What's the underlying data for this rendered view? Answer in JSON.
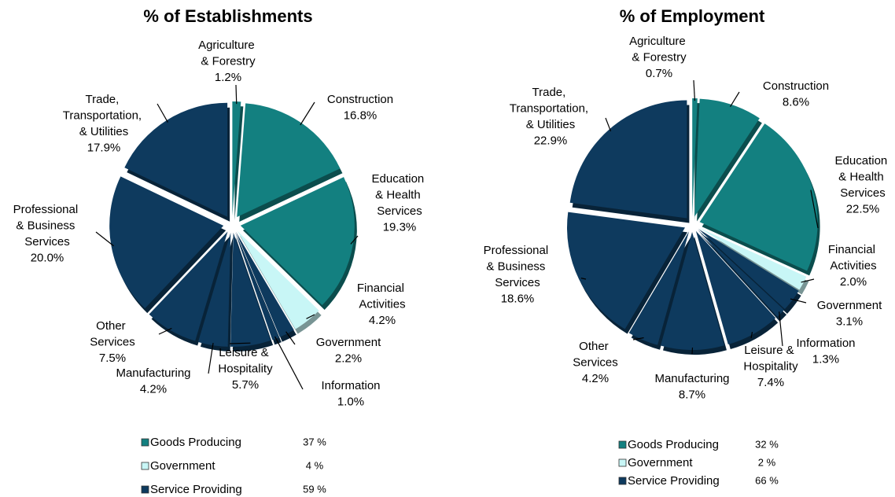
{
  "chart_data": [
    {
      "type": "pie",
      "title": "% of Establishments",
      "categories": [
        "Agriculture & Forestry",
        "Construction",
        "Education & Health Services",
        "Financial Activities",
        "Government",
        "Information",
        "Leisure & Hospitality",
        "Manufacturing",
        "Other Services",
        "Professional & Business Services",
        "Trade, Transportation, & Utilities"
      ],
      "values": [
        1.2,
        16.8,
        19.3,
        4.2,
        2.2,
        1.0,
        5.7,
        4.2,
        7.5,
        20.0,
        17.9
      ],
      "value_labels": [
        "1.2%",
        "16.8%",
        "19.3%",
        "4.2%",
        "2.2%",
        "1.0%",
        "5.7%",
        "4.2%",
        "7.5%",
        "20.0%",
        "17.9%"
      ],
      "colors": [
        "#138080",
        "#138080",
        "#138080",
        "#c8f6f6",
        "#0e3a5e",
        "#0e3a5e",
        "#0e3a5e",
        "#0e3a5e",
        "#0e3a5e",
        "#0e3a5e",
        "#0e3a5e"
      ],
      "legend": {
        "names": [
          "Goods Producing",
          "Government",
          "Service Providing"
        ],
        "values": [
          37,
          4,
          59
        ],
        "value_labels": [
          "37 %",
          "4 %",
          "59 %"
        ],
        "colors": [
          "#138080",
          "#c8f6f6",
          "#0e3a5e"
        ]
      }
    },
    {
      "type": "pie",
      "title": "% of Employment",
      "categories": [
        "Agriculture & Forestry",
        "Construction",
        "Education & Health Services",
        "Financial Activities",
        "Government",
        "Information",
        "Leisure & Hospitality",
        "Manufacturing",
        "Other Services",
        "Professional & Business Services",
        "Trade, Transportation, & Utilities"
      ],
      "values": [
        0.7,
        8.6,
        22.5,
        2.0,
        3.1,
        1.3,
        7.4,
        8.7,
        4.2,
        18.6,
        22.9
      ],
      "value_labels": [
        "0.7%",
        "8.6%",
        "22.5%",
        "2.0%",
        "3.1%",
        "1.3%",
        "7.4%",
        "8.7%",
        "4.2%",
        "18.6%",
        "22.9%"
      ],
      "colors": [
        "#138080",
        "#138080",
        "#138080",
        "#c8f6f6",
        "#0e3a5e",
        "#0e3a5e",
        "#0e3a5e",
        "#0e3a5e",
        "#0e3a5e",
        "#0e3a5e",
        "#0e3a5e"
      ],
      "legend": {
        "names": [
          "Goods Producing",
          "Government",
          "Service Providing"
        ],
        "values": [
          32,
          2,
          66
        ],
        "value_labels": [
          "32 %",
          "2 %",
          "66 %"
        ],
        "colors": [
          "#138080",
          "#c8f6f6",
          "#0e3a5e"
        ]
      }
    }
  ]
}
